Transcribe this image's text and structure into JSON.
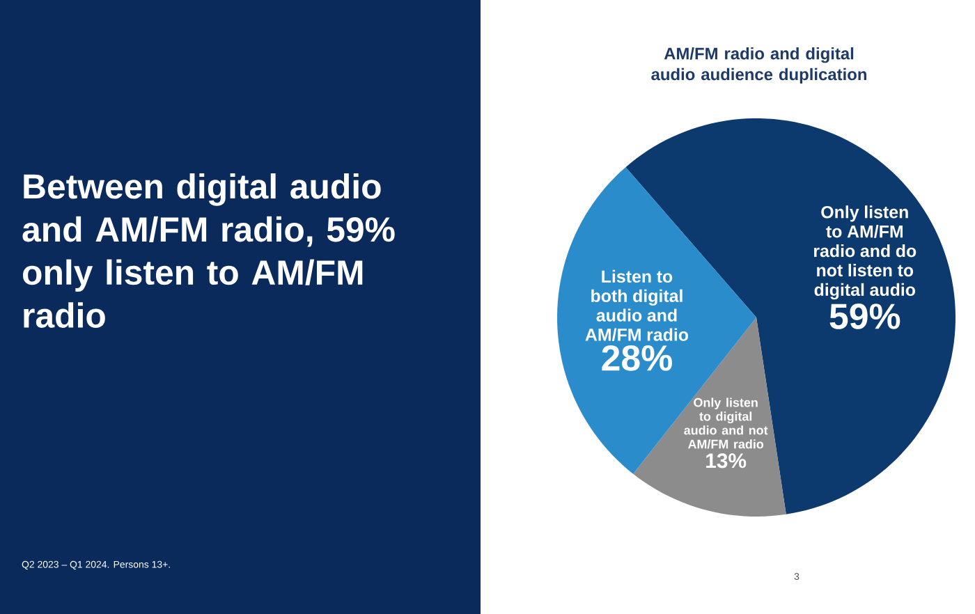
{
  "chart_data": {
    "type": "pie",
    "title": "AM/FM radio and digital audio audience duplication",
    "categories": [
      "Only listen to AM/FM radio and do not listen to digital audio",
      "Only listen to digital audio and not AM/FM radio",
      "Listen to both digital audio and AM/FM radio"
    ],
    "values": [
      59,
      13,
      28
    ],
    "colors": [
      "#0d3a6e",
      "#8c8c8c",
      "#2b8ccc"
    ],
    "value_labels": [
      "59%",
      "13%",
      "28%"
    ],
    "annotations": [
      "Between digital audio and AM/FM radio, 59% only listen to AM/FM radio",
      "Q2 2023 – Q1 2024. Persons 13+.",
      "3"
    ]
  }
}
